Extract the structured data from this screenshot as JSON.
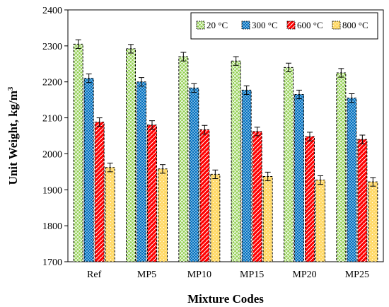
{
  "chart_data": {
    "type": "bar",
    "title": "",
    "xlabel": "Mixture Codes",
    "ylabel": "Unit Weight, kg/m",
    "ylabel_superscript": "3",
    "ylim": [
      1700,
      2400
    ],
    "yticks": [
      1700,
      1800,
      1900,
      2000,
      2100,
      2200,
      2300,
      2400
    ],
    "grid": false,
    "legend_position": "top-right",
    "categories": [
      "Ref",
      "MP5",
      "MP10",
      "MP15",
      "MP20",
      "MP25"
    ],
    "series": [
      {
        "name": "20 °C",
        "color": "#92D050",
        "pattern": "cross-hatch",
        "values": [
          2305,
          2292,
          2270,
          2258,
          2240,
          2225
        ],
        "error": [
          12,
          12,
          12,
          12,
          12,
          12
        ]
      },
      {
        "name": "300 °C",
        "color": "#0070C0",
        "pattern": "dots",
        "values": [
          2210,
          2200,
          2183,
          2177,
          2165,
          2155
        ],
        "error": [
          12,
          12,
          12,
          12,
          12,
          12
        ]
      },
      {
        "name": "600 °C",
        "color": "#FF0000",
        "pattern": "weave",
        "values": [
          2088,
          2080,
          2067,
          2062,
          2048,
          2040
        ],
        "error": [
          12,
          12,
          12,
          12,
          12,
          12
        ]
      },
      {
        "name": "800 °C",
        "color": "#FFD966",
        "pattern": "sparse-dots",
        "values": [
          1962,
          1958,
          1943,
          1937,
          1927,
          1922
        ],
        "error": [
          12,
          12,
          12,
          12,
          12,
          12
        ]
      }
    ]
  }
}
